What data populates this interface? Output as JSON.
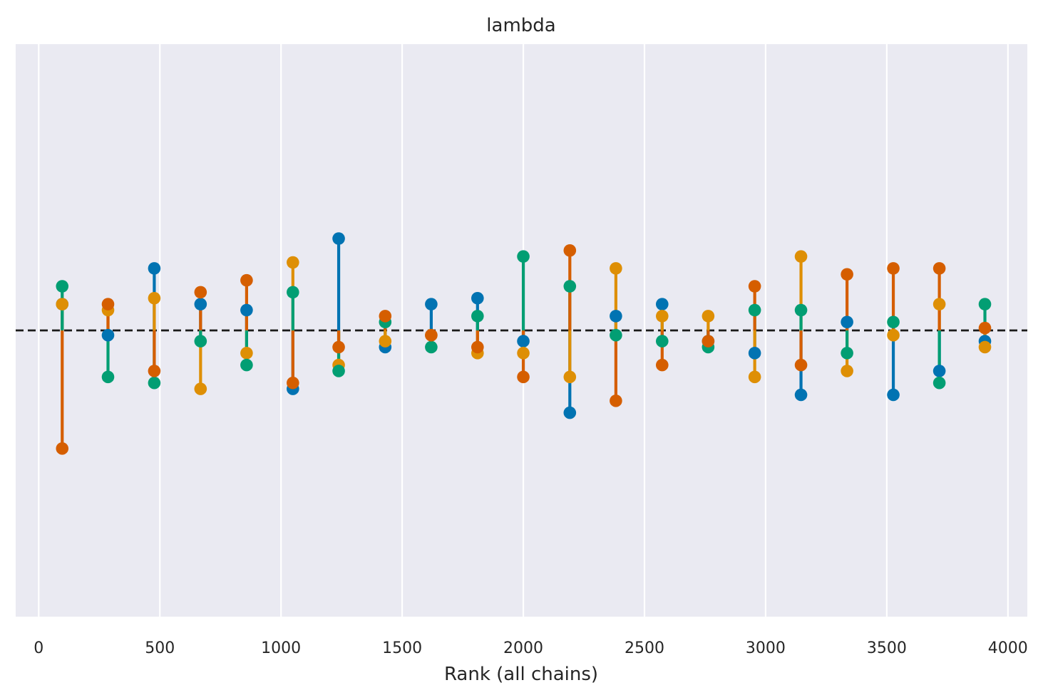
{
  "chart_data": {
    "type": "scatter",
    "variant": "rank-vlines",
    "title": "lambda",
    "xlabel": "Rank (all chains)",
    "ylabel": "",
    "xlim": [
      -95,
      4080
    ],
    "ylim": [
      -0.24,
      0.24
    ],
    "xticks": [
      0,
      500,
      1000,
      1500,
      2000,
      2500,
      3000,
      3500,
      4000
    ],
    "grid": true,
    "reference_line": {
      "y": 0,
      "style": "dashed",
      "color": "#1a1a1a"
    },
    "background": "#eaeaf2",
    "x": [
      97,
      286,
      477,
      668,
      858,
      1049,
      1238,
      1430,
      1620,
      1811,
      2000,
      2192,
      2382,
      2573,
      2763,
      2955,
      3146,
      3336,
      3527,
      3717,
      3905
    ],
    "series": [
      {
        "color": "#0173b2",
        "values": [
          0.022,
          -0.004,
          0.052,
          0.022,
          0.017,
          -0.049,
          0.077,
          -0.014,
          0.022,
          0.027,
          -0.009,
          -0.069,
          0.012,
          0.022,
          -0.009,
          -0.019,
          -0.054,
          0.007,
          -0.054,
          -0.034,
          -0.009
        ]
      },
      {
        "color": "#de8f05",
        "values": [
          0.022,
          0.017,
          0.027,
          -0.049,
          -0.019,
          0.057,
          -0.029,
          -0.009,
          -0.004,
          -0.019,
          -0.019,
          -0.039,
          0.052,
          0.012,
          0.012,
          -0.039,
          0.062,
          -0.034,
          -0.004,
          0.022,
          -0.014
        ]
      },
      {
        "color": "#029e73",
        "values": [
          0.037,
          -0.039,
          -0.044,
          -0.009,
          -0.029,
          0.032,
          -0.034,
          0.007,
          -0.014,
          0.012,
          0.062,
          0.037,
          -0.004,
          -0.009,
          -0.014,
          0.017,
          0.017,
          -0.019,
          0.007,
          -0.044,
          0.022
        ]
      },
      {
        "color": "#d55e00",
        "values": [
          -0.099,
          0.022,
          -0.034,
          0.032,
          0.042,
          -0.044,
          -0.014,
          0.012,
          -0.004,
          -0.014,
          -0.039,
          0.067,
          -0.059,
          -0.029,
          -0.009,
          0.037,
          -0.029,
          0.047,
          0.052,
          0.052,
          0.002
        ]
      }
    ]
  }
}
